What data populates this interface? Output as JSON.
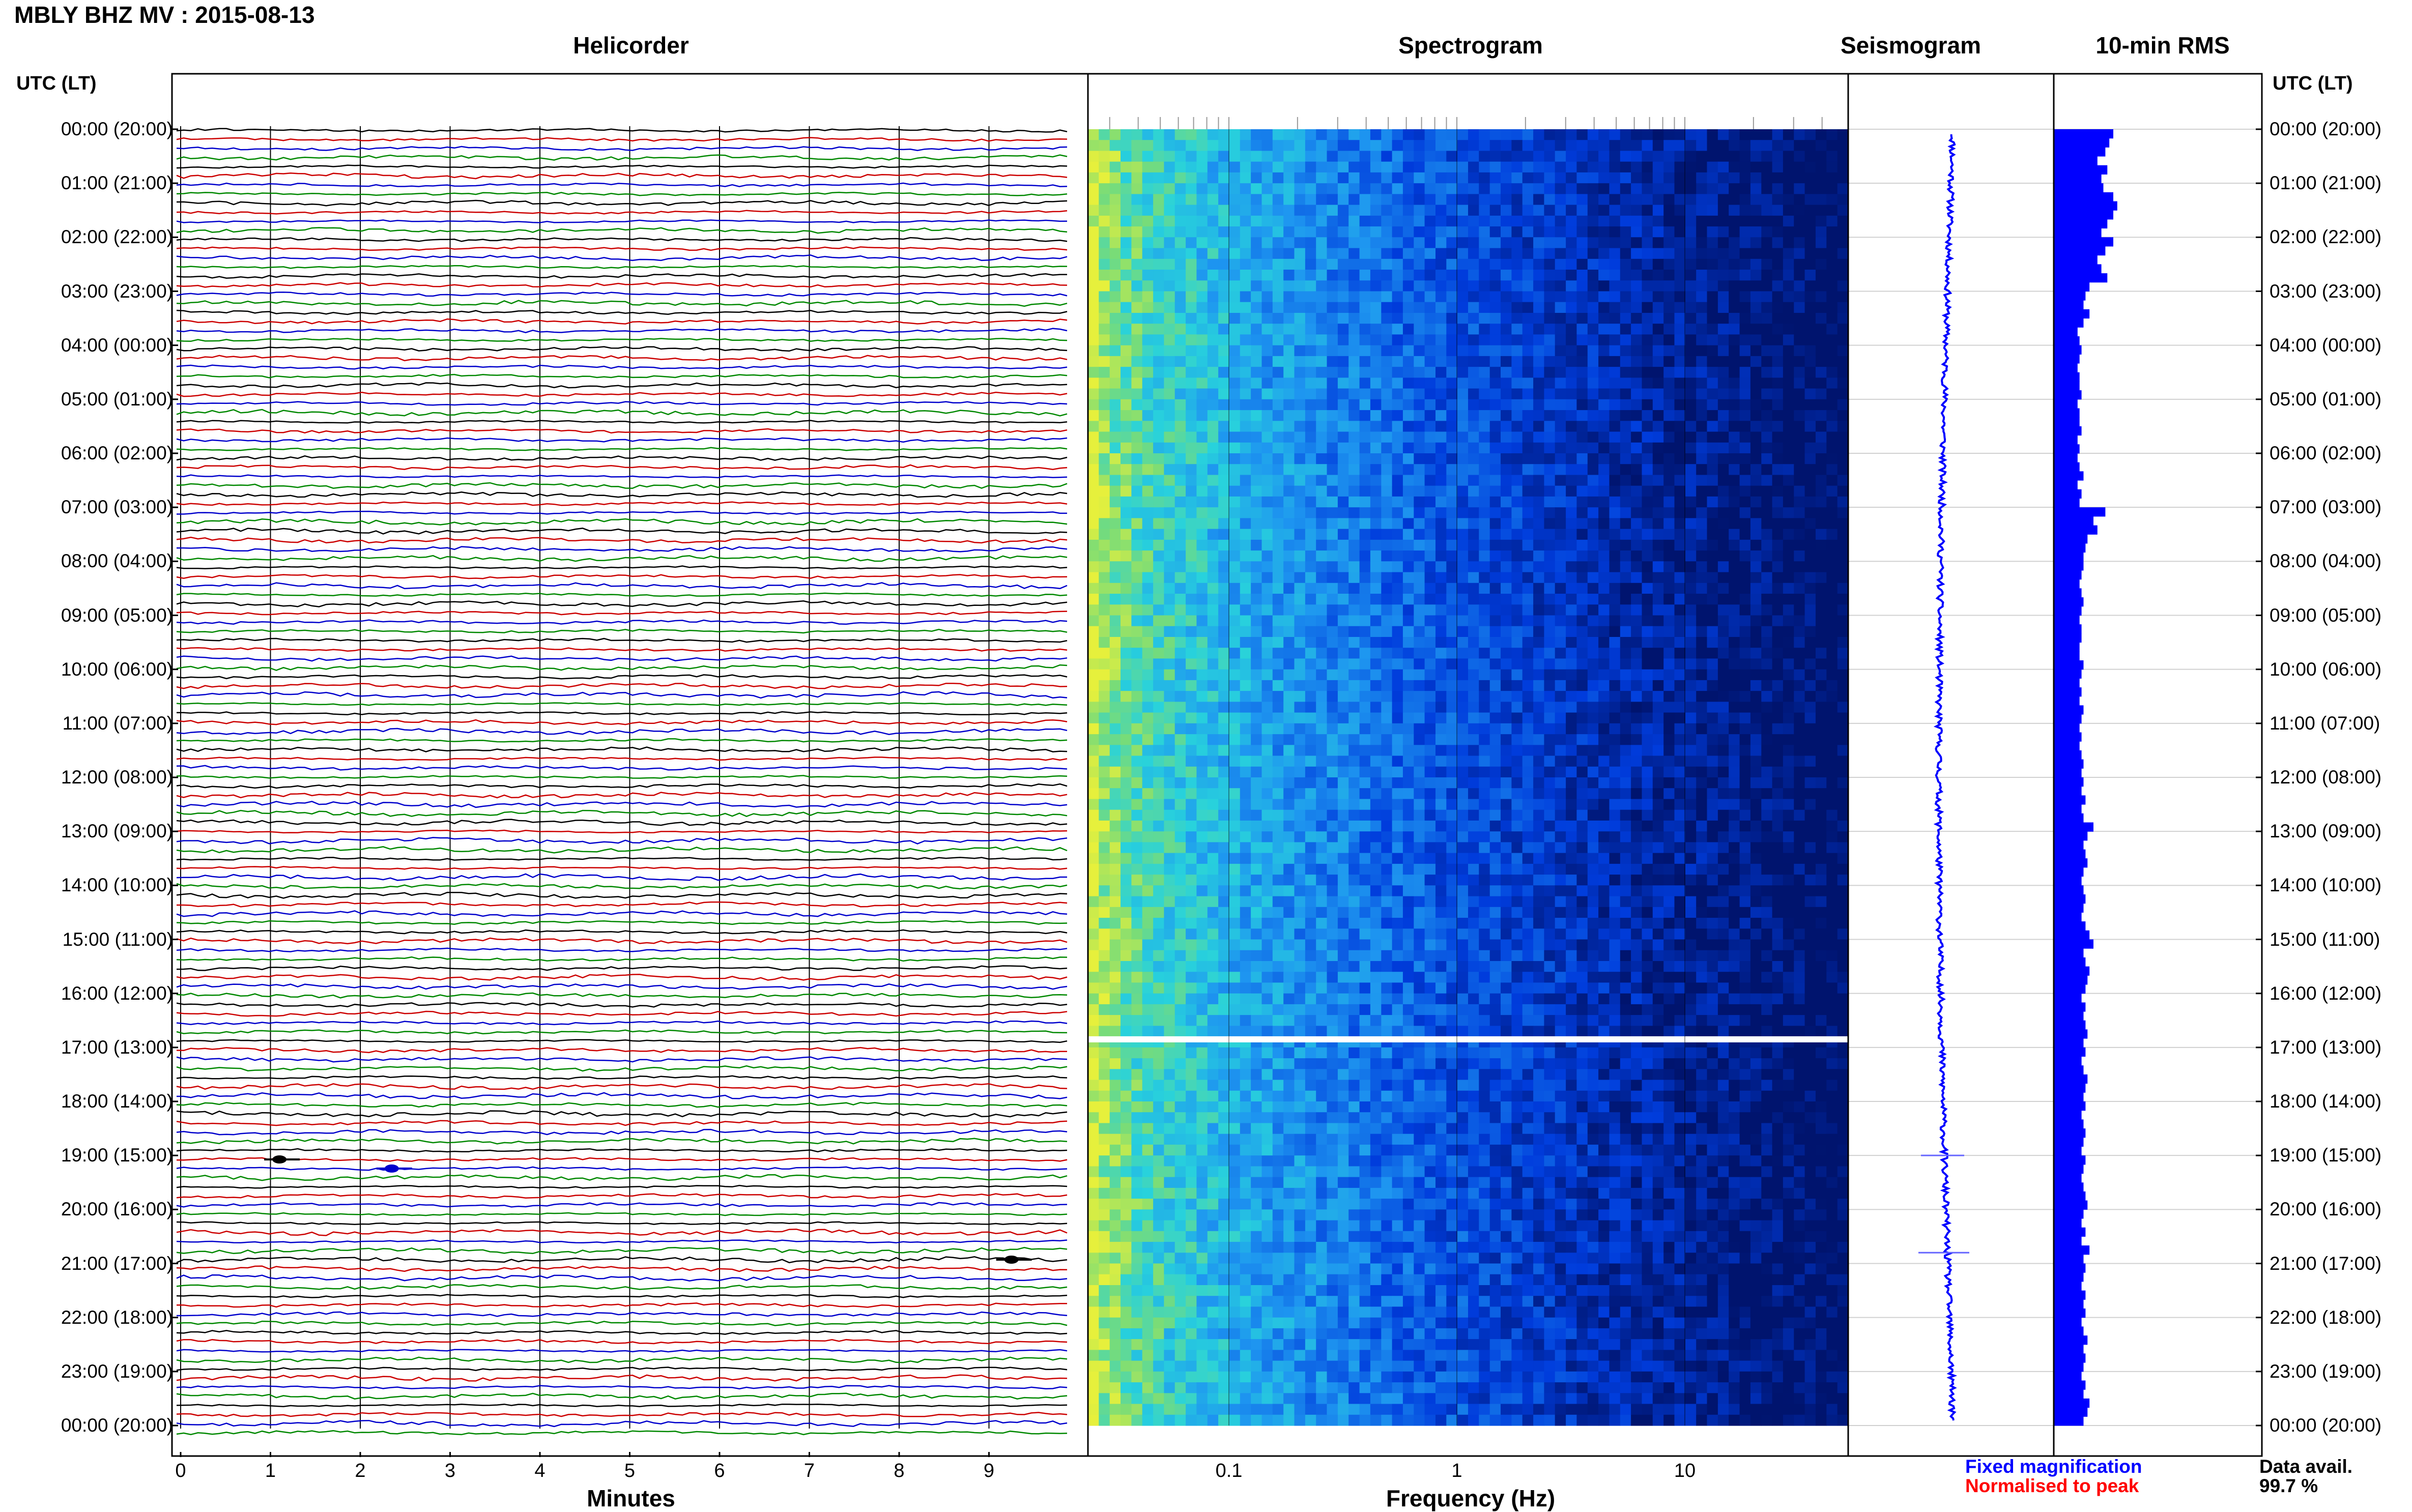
{
  "title": "MBLY BHZ MV : 2015-08-13",
  "panels": {
    "helicorder": "Helicorder",
    "spectrogram": "Spectrogram",
    "seismogram": "Seismogram",
    "rms": "10-min RMS"
  },
  "utc_header": "UTC (LT)",
  "hour_labels": [
    "00:00 (20:00)",
    "01:00 (21:00)",
    "02:00 (22:00)",
    "03:00 (23:00)",
    "04:00 (00:00)",
    "05:00 (01:00)",
    "06:00 (02:00)",
    "07:00 (03:00)",
    "08:00 (04:00)",
    "09:00 (05:00)",
    "10:00 (06:00)",
    "11:00 (07:00)",
    "12:00 (08:00)",
    "13:00 (09:00)",
    "14:00 (10:00)",
    "15:00 (11:00)",
    "16:00 (12:00)",
    "17:00 (13:00)",
    "18:00 (14:00)",
    "19:00 (15:00)",
    "20:00 (16:00)",
    "21:00 (17:00)",
    "22:00 (18:00)",
    "23:00 (19:00)",
    "00:00 (20:00)"
  ],
  "minutes_axis": {
    "label": "Minutes",
    "ticks": [
      "0",
      "1",
      "2",
      "3",
      "4",
      "5",
      "6",
      "7",
      "8",
      "9"
    ]
  },
  "frequency_axis": {
    "label": "Frequency (Hz)",
    "ticks": [
      "0.1",
      "1",
      "10"
    ],
    "scale": "log",
    "range": [
      0.01,
      50
    ]
  },
  "legend": {
    "fixed": "Fixed magnification",
    "normalised": "Normalised to peak"
  },
  "data_availability": {
    "label": "Data avail.",
    "value": "99.7 %"
  },
  "colors": {
    "trace_cycle": [
      "#000000",
      "#cc0000",
      "#0000cc",
      "#008800"
    ],
    "rms_bar": "#0000ff",
    "seismogram": "#0000ff"
  },
  "chart_data": [
    {
      "type": "line",
      "title": "Helicorder",
      "xlabel": "Minutes",
      "xlim": [
        0,
        10
      ],
      "lines": 144,
      "events": [
        {
          "line": 113,
          "minute": 1.1,
          "color": "#000000"
        },
        {
          "line": 114,
          "minute": 2.35,
          "color": "#0000cc"
        },
        {
          "line": 124,
          "minute": 9.25,
          "color": "#000000"
        }
      ]
    },
    {
      "type": "heatmap",
      "title": "Spectrogram",
      "xlabel": "Frequency (Hz)",
      "x_scale": "log",
      "xlim": [
        0.01,
        50
      ],
      "data_gap_hour": 16.85
    },
    {
      "type": "line",
      "title": "Seismogram",
      "orientation": "vertical"
    },
    {
      "type": "bar",
      "title": "10-min RMS",
      "orientation": "horizontal",
      "values": [
        0.3,
        0.28,
        0.26,
        0.22,
        0.27,
        0.24,
        0.25,
        0.3,
        0.32,
        0.3,
        0.27,
        0.24,
        0.3,
        0.26,
        0.22,
        0.24,
        0.27,
        0.18,
        0.16,
        0.15,
        0.18,
        0.15,
        0.12,
        0.13,
        0.14,
        0.13,
        0.12,
        0.13,
        0.13,
        0.14,
        0.12,
        0.13,
        0.13,
        0.14,
        0.12,
        0.13,
        0.12,
        0.13,
        0.15,
        0.12,
        0.14,
        0.13,
        0.26,
        0.2,
        0.22,
        0.17,
        0.16,
        0.15,
        0.15,
        0.14,
        0.13,
        0.14,
        0.15,
        0.14,
        0.13,
        0.14,
        0.14,
        0.13,
        0.13,
        0.15,
        0.14,
        0.13,
        0.14,
        0.13,
        0.15,
        0.14,
        0.13,
        0.14,
        0.13,
        0.14,
        0.15,
        0.14,
        0.15,
        0.14,
        0.16,
        0.14,
        0.15,
        0.2,
        0.17,
        0.15,
        0.16,
        0.17,
        0.15,
        0.14,
        0.15,
        0.16,
        0.15,
        0.14,
        0.16,
        0.18,
        0.2,
        0.15,
        0.16,
        0.18,
        0.17,
        0.16,
        0.14,
        0.16,
        0.15,
        0.16,
        0.17,
        0.15,
        0.16,
        0.14,
        0.15,
        0.17,
        0.16,
        0.15,
        0.16,
        0.14,
        0.15,
        0.16,
        0.15,
        0.14,
        0.16,
        0.15,
        0.14,
        0.15,
        0.16,
        0.17,
        0.15,
        0.14,
        0.16,
        0.14,
        0.18,
        0.15,
        0.16,
        0.15,
        0.14,
        0.16,
        0.15,
        0.16,
        0.14,
        0.15,
        0.17,
        0.15,
        0.16,
        0.15,
        0.14,
        0.16,
        0.15,
        0.18,
        0.17,
        0.15
      ]
    }
  ]
}
